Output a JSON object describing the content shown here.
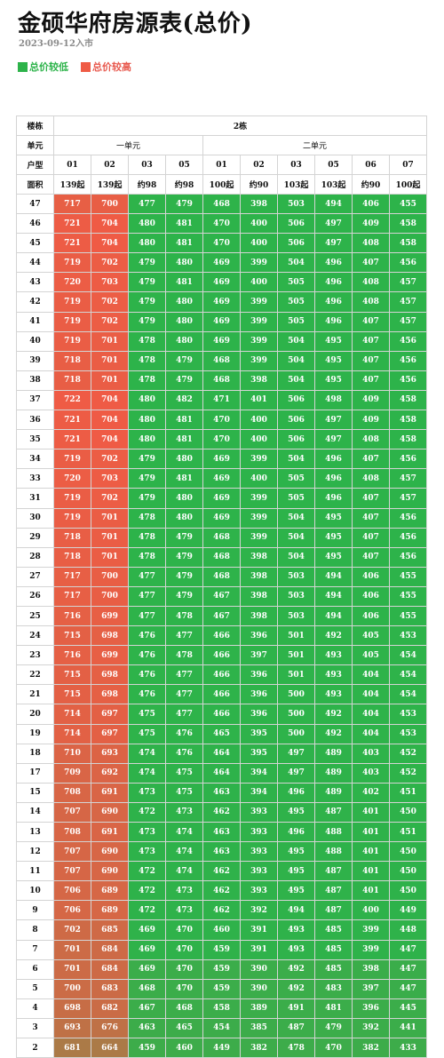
{
  "header": {
    "title": "金硕华府房源表(总价)",
    "subtitle": "2023-09-12入市"
  },
  "legend": {
    "low_label": "总价较低",
    "high_label": "总价较高",
    "low_color": "#2db34a",
    "high_color": "#ef5b45"
  },
  "table": {
    "row_labels": {
      "building": "楼栋",
      "unit": "单元",
      "type": "户型",
      "area": "面积"
    },
    "building": "2栋",
    "units": [
      {
        "label": "一单元",
        "span": 4
      },
      {
        "label": "二单元",
        "span": 6
      }
    ],
    "room_types": [
      "01",
      "02",
      "03",
      "05",
      "01",
      "02",
      "03",
      "05",
      "06",
      "07"
    ],
    "areas": [
      "139起",
      "139起",
      "约98",
      "约98",
      "100起",
      "约90",
      "103起",
      "103起",
      "约90",
      "100起"
    ],
    "rows": [
      {
        "floor": "47",
        "prices": [
          717,
          700,
          477,
          479,
          468,
          398,
          503,
          494,
          406,
          455
        ]
      },
      {
        "floor": "46",
        "prices": [
          721,
          704,
          480,
          481,
          470,
          400,
          506,
          497,
          409,
          458
        ]
      },
      {
        "floor": "45",
        "prices": [
          721,
          704,
          480,
          481,
          470,
          400,
          506,
          497,
          408,
          458
        ]
      },
      {
        "floor": "44",
        "prices": [
          719,
          702,
          479,
          480,
          469,
          399,
          504,
          496,
          407,
          456
        ]
      },
      {
        "floor": "43",
        "prices": [
          720,
          703,
          479,
          481,
          469,
          400,
          505,
          496,
          408,
          457
        ]
      },
      {
        "floor": "42",
        "prices": [
          719,
          702,
          479,
          480,
          469,
          399,
          505,
          496,
          408,
          457
        ]
      },
      {
        "floor": "41",
        "prices": [
          719,
          702,
          479,
          480,
          469,
          399,
          505,
          496,
          407,
          457
        ]
      },
      {
        "floor": "40",
        "prices": [
          719,
          701,
          478,
          480,
          469,
          399,
          504,
          495,
          407,
          456
        ]
      },
      {
        "floor": "39",
        "prices": [
          718,
          701,
          478,
          479,
          468,
          399,
          504,
          495,
          407,
          456
        ]
      },
      {
        "floor": "38",
        "prices": [
          718,
          701,
          478,
          479,
          468,
          398,
          504,
          495,
          407,
          456
        ]
      },
      {
        "floor": "37",
        "prices": [
          722,
          704,
          480,
          482,
          471,
          401,
          506,
          498,
          409,
          458
        ]
      },
      {
        "floor": "36",
        "prices": [
          721,
          704,
          480,
          481,
          470,
          400,
          506,
          497,
          409,
          458
        ]
      },
      {
        "floor": "35",
        "prices": [
          721,
          704,
          480,
          481,
          470,
          400,
          506,
          497,
          408,
          458
        ]
      },
      {
        "floor": "34",
        "prices": [
          719,
          702,
          479,
          480,
          469,
          399,
          504,
          496,
          407,
          456
        ]
      },
      {
        "floor": "33",
        "prices": [
          720,
          703,
          479,
          481,
          469,
          400,
          505,
          496,
          408,
          457
        ]
      },
      {
        "floor": "31",
        "prices": [
          719,
          702,
          479,
          480,
          469,
          399,
          505,
          496,
          407,
          457
        ]
      },
      {
        "floor": "30",
        "prices": [
          719,
          701,
          478,
          480,
          469,
          399,
          504,
          495,
          407,
          456
        ]
      },
      {
        "floor": "29",
        "prices": [
          718,
          701,
          478,
          479,
          468,
          399,
          504,
          495,
          407,
          456
        ]
      },
      {
        "floor": "28",
        "prices": [
          718,
          701,
          478,
          479,
          468,
          398,
          504,
          495,
          407,
          456
        ]
      },
      {
        "floor": "27",
        "prices": [
          717,
          700,
          477,
          479,
          468,
          398,
          503,
          494,
          406,
          455
        ]
      },
      {
        "floor": "26",
        "prices": [
          717,
          700,
          477,
          479,
          467,
          398,
          503,
          494,
          406,
          455
        ]
      },
      {
        "floor": "25",
        "prices": [
          716,
          699,
          477,
          478,
          467,
          398,
          503,
          494,
          406,
          455
        ]
      },
      {
        "floor": "24",
        "prices": [
          715,
          698,
          476,
          477,
          466,
          396,
          501,
          492,
          405,
          453
        ]
      },
      {
        "floor": "23",
        "prices": [
          716,
          699,
          476,
          478,
          466,
          397,
          501,
          493,
          405,
          454
        ]
      },
      {
        "floor": "22",
        "prices": [
          715,
          698,
          476,
          477,
          466,
          396,
          501,
          493,
          404,
          454
        ]
      },
      {
        "floor": "21",
        "prices": [
          715,
          698,
          476,
          477,
          466,
          396,
          500,
          493,
          404,
          454
        ]
      },
      {
        "floor": "20",
        "prices": [
          714,
          697,
          475,
          477,
          466,
          396,
          500,
          492,
          404,
          453
        ]
      },
      {
        "floor": "19",
        "prices": [
          714,
          697,
          475,
          476,
          465,
          395,
          500,
          492,
          404,
          453
        ]
      },
      {
        "floor": "18",
        "prices": [
          710,
          693,
          474,
          476,
          464,
          395,
          497,
          489,
          403,
          452
        ]
      },
      {
        "floor": "17",
        "prices": [
          709,
          692,
          474,
          475,
          464,
          394,
          497,
          489,
          403,
          452
        ]
      },
      {
        "floor": "15",
        "prices": [
          708,
          691,
          473,
          475,
          463,
          394,
          496,
          489,
          402,
          451
        ]
      },
      {
        "floor": "14",
        "prices": [
          707,
          690,
          472,
          473,
          462,
          393,
          495,
          487,
          401,
          450
        ]
      },
      {
        "floor": "13",
        "prices": [
          708,
          691,
          473,
          474,
          463,
          393,
          496,
          488,
          401,
          451
        ]
      },
      {
        "floor": "12",
        "prices": [
          707,
          690,
          473,
          474,
          463,
          393,
          495,
          488,
          401,
          450
        ]
      },
      {
        "floor": "11",
        "prices": [
          707,
          690,
          472,
          474,
          462,
          393,
          495,
          487,
          401,
          450
        ]
      },
      {
        "floor": "10",
        "prices": [
          706,
          689,
          472,
          473,
          462,
          393,
          495,
          487,
          401,
          450
        ]
      },
      {
        "floor": "9",
        "prices": [
          706,
          689,
          472,
          473,
          462,
          392,
          494,
          487,
          400,
          449
        ]
      },
      {
        "floor": "8",
        "prices": [
          702,
          685,
          469,
          470,
          460,
          391,
          493,
          485,
          399,
          448
        ]
      },
      {
        "floor": "7",
        "prices": [
          701,
          684,
          469,
          470,
          459,
          391,
          493,
          485,
          399,
          447
        ]
      },
      {
        "floor": "6",
        "prices": [
          701,
          684,
          469,
          470,
          459,
          390,
          492,
          485,
          398,
          447
        ]
      },
      {
        "floor": "5",
        "prices": [
          700,
          683,
          468,
          470,
          459,
          390,
          492,
          483,
          397,
          447
        ]
      },
      {
        "floor": "4",
        "prices": [
          698,
          682,
          467,
          468,
          458,
          389,
          491,
          481,
          396,
          445
        ]
      },
      {
        "floor": "3",
        "prices": [
          693,
          676,
          463,
          465,
          454,
          385,
          487,
          479,
          392,
          441
        ]
      },
      {
        "floor": "2",
        "prices": [
          681,
          664,
          459,
          460,
          449,
          382,
          478,
          470,
          382,
          433
        ]
      }
    ]
  }
}
